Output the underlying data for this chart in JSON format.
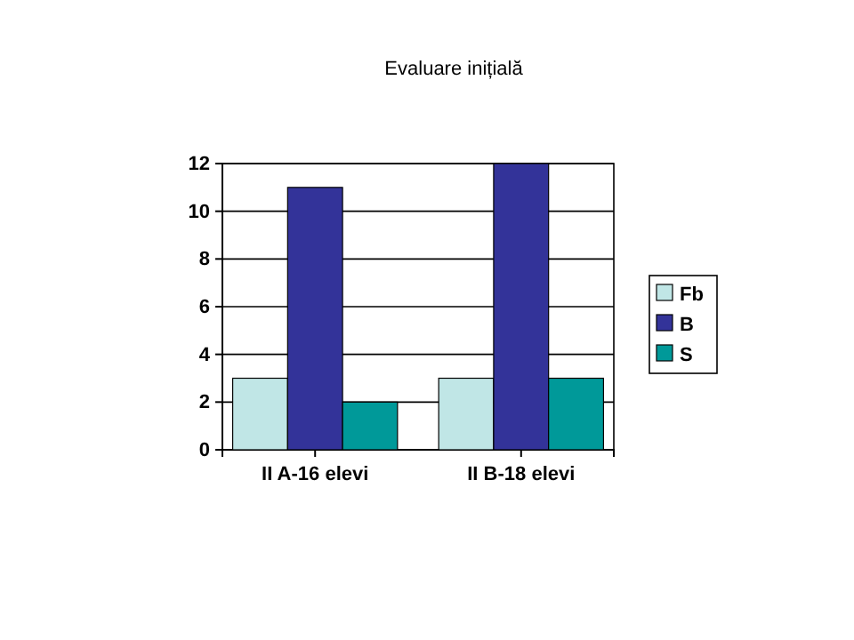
{
  "chart_data": {
    "type": "bar",
    "title": "Evaluare inițială",
    "categories": [
      "II A-16 elevi",
      "II B-18 elevi"
    ],
    "series": [
      {
        "name": "Fb",
        "color": "#c0e6e6",
        "values": [
          3,
          3
        ]
      },
      {
        "name": "B",
        "color": "#333399",
        "values": [
          11,
          12
        ]
      },
      {
        "name": "S",
        "color": "#009999",
        "values": [
          2,
          3
        ]
      }
    ],
    "ylim": [
      0,
      12
    ],
    "yticks": [
      0,
      2,
      4,
      6,
      8,
      10,
      12
    ],
    "grid": "y",
    "legend": "right"
  }
}
